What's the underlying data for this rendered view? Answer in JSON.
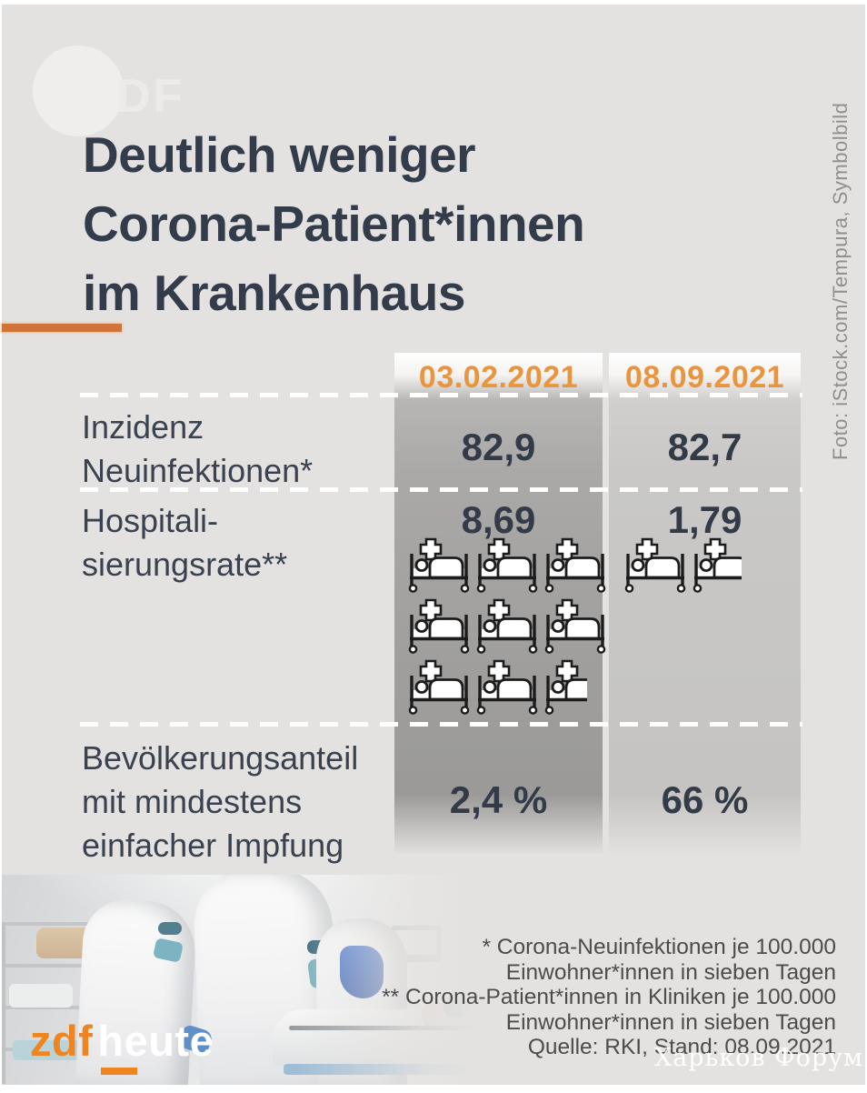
{
  "header": {
    "zdf_logo_text": "DF",
    "title_lines": [
      "Deutlich weniger",
      "Corona-Patient*innen",
      "im Krankenhaus"
    ]
  },
  "photo_credit": "Foto: iStock.com/Tempura, Symbolbild",
  "chart_data": {
    "type": "table",
    "title": "Deutlich weniger Corona-Patient*innen im Krankenhaus",
    "columns": [
      "03.02.2021",
      "08.09.2021"
    ],
    "rows": [
      {
        "label": "Inzidenz Neuinfektionen*",
        "label_lines": [
          "Inzidenz",
          "Neuinfektionen*"
        ],
        "values": [
          82.9,
          82.7
        ],
        "display": [
          "82,9",
          "82,7"
        ]
      },
      {
        "label": "Hospitalisierungsrate**",
        "label_lines": [
          "Hospitali-",
          "sierungsrate**"
        ],
        "values": [
          8.69,
          1.79
        ],
        "display": [
          "8,69",
          "1,79"
        ],
        "pictogram": "hospital-bed",
        "pictogram_unit_value": 1
      },
      {
        "label": "Bevölkerungsanteil mit mindestens einfacher Impfung",
        "label_lines": [
          "Bevölkerungsanteil",
          "mit mindestens",
          "einfacher Impfung"
        ],
        "values": [
          2.4,
          66
        ],
        "display": [
          "2,4 %",
          "66 %"
        ]
      }
    ],
    "grid": "dashed-white-row-separators",
    "legend_position": "none",
    "source": "Quelle: RKI, Stand: 08.09.2021"
  },
  "footnotes": [
    "* Corona-Neuinfektionen je 100.000",
    "Einwohner*innen in sieben Tagen",
    "** Corona-Patient*innen in Kliniken je 100.000",
    "Einwohner*innen in sieben Tagen",
    "Quelle: RKI, Stand: 08.09.2021"
  ],
  "branding": {
    "zdf": "zdf",
    "heute": "heute"
  },
  "watermark": "Харьков Форум",
  "colors": {
    "background": "#e4e2e0",
    "accent_orange": "#e9953e",
    "rule_orange": "#d0743a",
    "headline_navy": "#333c4b",
    "value_navy": "#333b49",
    "column_dark_gray": "#a09f9d",
    "column_light_gray": "#c9c8c6",
    "footnote_gray": "#4c4c4c",
    "credit_gray": "#8f8f8f"
  }
}
